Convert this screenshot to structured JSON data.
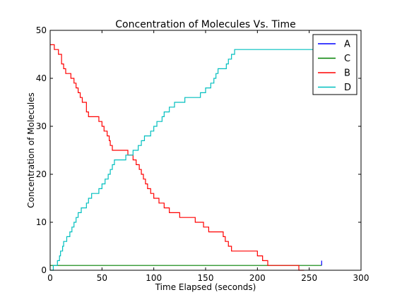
{
  "chart_data": {
    "type": "line",
    "title": "Concentration of Molecules Vs. Time",
    "xlabel": "Time Elapsed (seconds)",
    "ylabel": "Concentration of Molecules",
    "xlim": [
      0,
      300
    ],
    "ylim": [
      0,
      50
    ],
    "xticks": [
      "0",
      "50",
      "100",
      "150",
      "200",
      "250",
      "300"
    ],
    "yticks": [
      "0",
      "10",
      "20",
      "30",
      "40",
      "50"
    ],
    "grid": false,
    "legend_position": "top-right",
    "step": true,
    "series": [
      {
        "name": "A",
        "color": "#0000ff",
        "x": [
          262,
          262
        ],
        "y": [
          1,
          2
        ]
      },
      {
        "name": "C",
        "color": "#008000",
        "x": [
          0,
          262
        ],
        "y": [
          1,
          1
        ]
      },
      {
        "name": "B",
        "color": "#ff0000",
        "x": [
          0,
          4,
          8,
          11,
          13,
          15,
          20,
          23,
          25,
          27,
          29,
          31,
          35,
          37,
          47,
          50,
          52,
          55,
          57,
          58,
          60,
          75,
          80,
          83,
          86,
          88,
          90,
          92,
          94,
          97,
          100,
          105,
          110,
          115,
          125,
          140,
          148,
          153,
          167,
          169,
          172,
          175,
          200,
          205,
          210,
          240,
          245
        ],
        "y": [
          47,
          46,
          45,
          43,
          42,
          41,
          40,
          39,
          38,
          37,
          36,
          35,
          33,
          32,
          31,
          30,
          29,
          28,
          27,
          26,
          25,
          24,
          23,
          22,
          21,
          20,
          19,
          18,
          17,
          16,
          15,
          14,
          13,
          12,
          11,
          10,
          9,
          8,
          7,
          6,
          5,
          4,
          3,
          2,
          1,
          0,
          0
        ]
      },
      {
        "name": "D",
        "color": "#00bfbf",
        "x": [
          0,
          3,
          7,
          9,
          10,
          12,
          13,
          16,
          19,
          21,
          23,
          25,
          27,
          30,
          35,
          37,
          40,
          47,
          50,
          53,
          56,
          58,
          60,
          62,
          73,
          80,
          85,
          88,
          91,
          97,
          100,
          103,
          108,
          110,
          115,
          120,
          130,
          145,
          150,
          155,
          158,
          160,
          162,
          170,
          172,
          175,
          178,
          200,
          202,
          205,
          210,
          260,
          262
        ],
        "y": [
          0,
          1,
          2,
          3,
          4,
          5,
          6,
          7,
          8,
          9,
          10,
          11,
          12,
          13,
          14,
          15,
          16,
          17,
          18,
          19,
          20,
          21,
          22,
          23,
          24,
          25,
          26,
          27,
          28,
          29,
          30,
          31,
          32,
          33,
          34,
          35,
          36,
          37,
          38,
          39,
          40,
          41,
          42,
          43,
          44,
          45,
          46,
          46,
          46,
          46,
          46,
          47,
          47
        ]
      }
    ]
  }
}
